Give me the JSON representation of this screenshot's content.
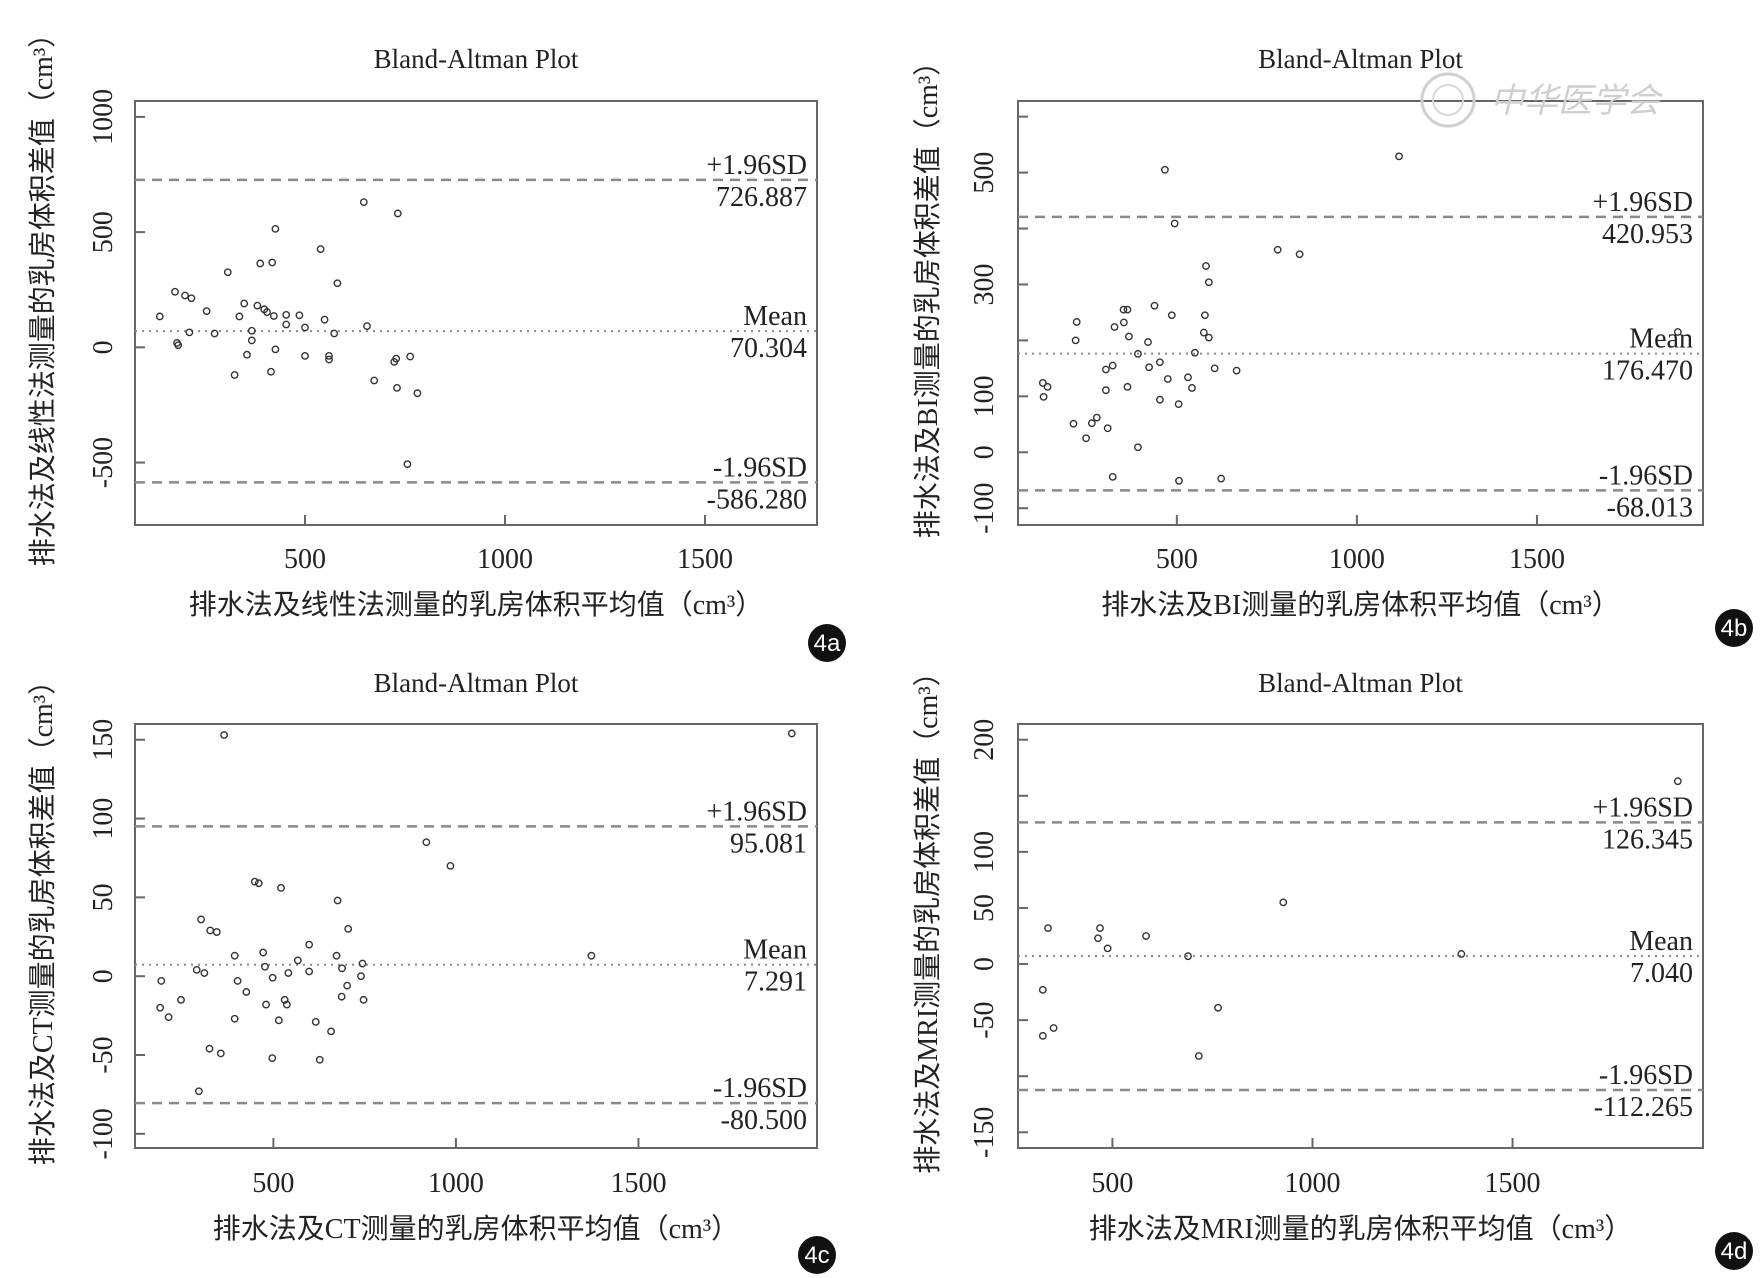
{
  "colors": {
    "box": "#666666",
    "points": "#333333",
    "limit_lines": "#8a8a8a",
    "mean_line": "#888888",
    "badge": "#111111"
  },
  "watermark": {
    "text": "中华医学会",
    "icon": "society-seal-icon"
  },
  "chart_data": [
    {
      "type": "scatter",
      "panel_label": "4a",
      "title": "Bland-Altman Plot",
      "xlabel": "排水法及线性法测量的乳房体积平均值（cm³）",
      "ylabel": "排水法及线性法测量的乳房体积差值（cm³）",
      "xlim": [
        75,
        1780
      ],
      "ylim": [
        -771,
        1069
      ],
      "xticks": [
        500,
        1000,
        1500
      ],
      "xtick_labels": [
        "500",
        "1000",
        "1500"
      ],
      "yticks": [
        -500,
        0,
        500,
        1000
      ],
      "ytick_labels": [
        "-500",
        "0",
        "500",
        "1000"
      ],
      "upper": {
        "label": "+1.96SD",
        "value": 726.887,
        "text": "726.887"
      },
      "mean": {
        "label": "Mean",
        "value": 70.304,
        "text": "70.304"
      },
      "lower": {
        "label": "-1.96SD",
        "value": -586.28,
        "text": "-586.280"
      },
      "points": [
        [
          137,
          134
        ],
        [
          175,
          241
        ],
        [
          180,
          19
        ],
        [
          183,
          9
        ],
        [
          200,
          225
        ],
        [
          216,
          213
        ],
        [
          211,
          65
        ],
        [
          254,
          157
        ],
        [
          274,
          60
        ],
        [
          307,
          326
        ],
        [
          324,
          -120
        ],
        [
          336,
          134
        ],
        [
          348,
          190
        ],
        [
          355,
          -32
        ],
        [
          367,
          72
        ],
        [
          367,
          30
        ],
        [
          381,
          181
        ],
        [
          388,
          364
        ],
        [
          398,
          165
        ],
        [
          405,
          153
        ],
        [
          415,
          -106
        ],
        [
          418,
          368
        ],
        [
          422,
          136
        ],
        [
          426,
          514
        ],
        [
          426,
          -9
        ],
        [
          453,
          141
        ],
        [
          453,
          99
        ],
        [
          486,
          139
        ],
        [
          500,
          86
        ],
        [
          500,
          -37
        ],
        [
          539,
          426
        ],
        [
          549,
          120
        ],
        [
          560,
          -37
        ],
        [
          560,
          -53
        ],
        [
          573,
          60
        ],
        [
          581,
          278
        ],
        [
          647,
          630
        ],
        [
          655,
          92
        ],
        [
          673,
          -144
        ],
        [
          723,
          -63
        ],
        [
          728,
          -49
        ],
        [
          730,
          -176
        ],
        [
          732,
          581
        ],
        [
          756,
          -507
        ],
        [
          763,
          -40
        ],
        [
          781,
          -199
        ]
      ]
    },
    {
      "type": "scatter",
      "panel_label": "4b",
      "title": "Bland-Altman Plot",
      "xlabel": "排水法及BI测量的乳房体积平均值（cm³）",
      "ylabel": "排水法及BI测量的乳房体积差值（cm³）",
      "xlim": [
        59,
        1961
      ],
      "ylim": [
        -130,
        628
      ],
      "xticks": [
        500,
        1000,
        1500
      ],
      "xtick_labels": [
        "500",
        "1000",
        "1500"
      ],
      "yticks": [
        -100,
        0,
        100,
        200,
        300,
        400,
        500,
        600
      ],
      "ytick_labels": [
        "-100",
        "0",
        "100",
        "",
        "300",
        "",
        "500",
        ""
      ],
      "upper": {
        "label": "+1.96SD",
        "value": 420.953,
        "text": "420.953"
      },
      "mean": {
        "label": "Mean",
        "value": 176.47,
        "text": "176.470"
      },
      "lower": {
        "label": "-1.96SD",
        "value": -68.013,
        "text": "-68.013"
      },
      "points": [
        [
          128,
          124
        ],
        [
          141,
          117
        ],
        [
          130,
          99
        ],
        [
          213,
          51
        ],
        [
          219,
          200
        ],
        [
          222,
          233
        ],
        [
          248,
          25
        ],
        [
          264,
          52
        ],
        [
          278,
          62
        ],
        [
          303,
          111
        ],
        [
          303,
          148
        ],
        [
          308,
          43
        ],
        [
          322,
          155
        ],
        [
          322,
          -44
        ],
        [
          327,
          224
        ],
        [
          352,
          255
        ],
        [
          363,
          255
        ],
        [
          353,
          232
        ],
        [
          363,
          117
        ],
        [
          367,
          207
        ],
        [
          392,
          9
        ],
        [
          392,
          176
        ],
        [
          420,
          197
        ],
        [
          423,
          152
        ],
        [
          438,
          262
        ],
        [
          453,
          161
        ],
        [
          453,
          94
        ],
        [
          467,
          505
        ],
        [
          475,
          131
        ],
        [
          486,
          245
        ],
        [
          494,
          409
        ],
        [
          505,
          86
        ],
        [
          506,
          -51
        ],
        [
          531,
          134
        ],
        [
          542,
          115
        ],
        [
          550,
          178
        ],
        [
          575,
          214
        ],
        [
          578,
          245
        ],
        [
          581,
          333
        ],
        [
          589,
          304
        ],
        [
          589,
          205
        ],
        [
          605,
          150
        ],
        [
          623,
          -47
        ],
        [
          666,
          146
        ],
        [
          780,
          362
        ],
        [
          841,
          354
        ],
        [
          1117,
          529
        ],
        [
          1891,
          215
        ]
      ]
    },
    {
      "type": "scatter",
      "panel_label": "4c",
      "title": "Bland-Altman Plot",
      "xlabel": "排水法及CT测量的乳房体积平均值（cm³）",
      "ylabel": "排水法及CT测量的乳房体积差值（cm³）",
      "xlim": [
        121,
        1989
      ],
      "ylim": [
        -109,
        160
      ],
      "xticks": [
        500,
        1000,
        1500
      ],
      "xtick_labels": [
        "500",
        "1000",
        "1500"
      ],
      "yticks": [
        -100,
        -50,
        0,
        50,
        100,
        150
      ],
      "ytick_labels": [
        "-100",
        "-50",
        "0",
        "50",
        "100",
        "150"
      ],
      "upper": {
        "label": "+1.96SD",
        "value": 95.081,
        "text": "95.081"
      },
      "mean": {
        "label": "Mean",
        "value": 7.291,
        "text": "7.291"
      },
      "lower": {
        "label": "-1.96SD",
        "value": -80.5,
        "text": "-80.500"
      },
      "points": [
        [
          193,
          -3
        ],
        [
          190,
          -20
        ],
        [
          213,
          -26
        ],
        [
          247,
          -15
        ],
        [
          290,
          4
        ],
        [
          302,
          36
        ],
        [
          311,
          2
        ],
        [
          296,
          -73
        ],
        [
          327,
          29
        ],
        [
          345,
          28
        ],
        [
          325,
          -46
        ],
        [
          356,
          -49
        ],
        [
          365,
          153
        ],
        [
          394,
          13
        ],
        [
          394,
          -27
        ],
        [
          402,
          -3
        ],
        [
          426,
          -10
        ],
        [
          449,
          60
        ],
        [
          460,
          59
        ],
        [
          472,
          15
        ],
        [
          477,
          6
        ],
        [
          480,
          -18
        ],
        [
          498,
          -1
        ],
        [
          497,
          -52
        ],
        [
          515,
          -28
        ],
        [
          521,
          56
        ],
        [
          531,
          -15
        ],
        [
          537,
          -18
        ],
        [
          541,
          2
        ],
        [
          567,
          10
        ],
        [
          598,
          20
        ],
        [
          598,
          3
        ],
        [
          616,
          -29
        ],
        [
          627,
          -53
        ],
        [
          658,
          -35
        ],
        [
          673,
          13
        ],
        [
          676,
          48
        ],
        [
          687,
          -13
        ],
        [
          688,
          5
        ],
        [
          702,
          -6
        ],
        [
          705,
          30
        ],
        [
          740,
          0
        ],
        [
          744,
          8
        ],
        [
          747,
          -15
        ],
        [
          919,
          85
        ],
        [
          985,
          70
        ],
        [
          1371,
          13
        ],
        [
          1920,
          154
        ]
      ]
    },
    {
      "type": "scatter",
      "panel_label": "4d",
      "title": "Bland-Altman Plot",
      "xlabel": "排水法及MRI测量的乳房体积平均值（cm³）",
      "ylabel": "排水法及MRI测量的乳房体积差值（cm³）",
      "xlim": [
        264,
        1976
      ],
      "ylim": [
        -164,
        214
      ],
      "xticks": [
        500,
        1000,
        1500
      ],
      "xtick_labels": [
        "500",
        "1000",
        "1500"
      ],
      "yticks": [
        -150,
        -100,
        -50,
        0,
        50,
        100,
        150,
        200
      ],
      "ytick_labels": [
        "-150",
        "",
        "-50",
        "0",
        "50",
        "100",
        "",
        "200"
      ],
      "upper": {
        "label": "+1.96SD",
        "value": 126.345,
        "text": "126.345"
      },
      "mean": {
        "label": "Mean",
        "value": 7.04,
        "text": "7.040"
      },
      "lower": {
        "label": "-1.96SD",
        "value": -112.265,
        "text": "-112.265"
      },
      "points": [
        [
          339,
          32
        ],
        [
          326,
          -23
        ],
        [
          326,
          -64
        ],
        [
          353,
          -57
        ],
        [
          469,
          32
        ],
        [
          464,
          23
        ],
        [
          488,
          14
        ],
        [
          584,
          25
        ],
        [
          689,
          7
        ],
        [
          716,
          -82
        ],
        [
          764,
          -39
        ],
        [
          927,
          55
        ],
        [
          1372,
          9
        ],
        [
          1913,
          163
        ]
      ]
    }
  ]
}
